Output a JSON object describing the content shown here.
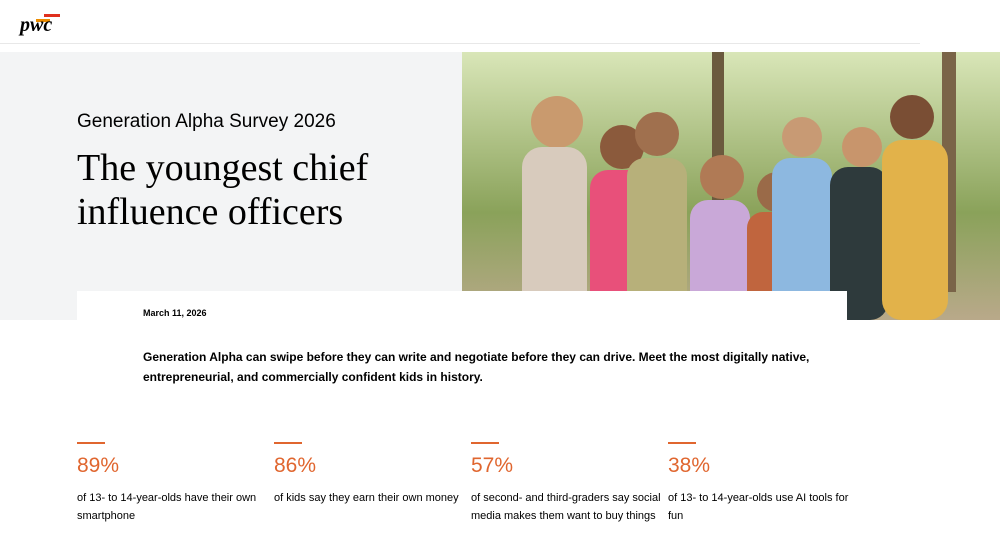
{
  "header": {
    "logo": "pwc"
  },
  "hero": {
    "eyebrow": "Generation Alpha Survey 2026",
    "title_lines": [
      "The youngest chief",
      "influence officers"
    ]
  },
  "article": {
    "date": "March 11, 2026",
    "lead_lines": [
      "Generation Alpha can swipe before they can write and negotiate before they can drive. Meet the most digitally native,",
      "entrepreneurial, and commercially confident kids in history."
    ]
  },
  "stats": [
    {
      "figure": "89%",
      "text_lines": [
        "of 13- to 14-year-olds have their own",
        "smartphone"
      ]
    },
    {
      "figure": "86%",
      "text_lines": [
        "of kids say they earn their own money"
      ]
    },
    {
      "figure": "57%",
      "text_lines": [
        "of second- and third-graders say social",
        "media makes them want to buy things"
      ]
    },
    {
      "figure": "38%",
      "text_lines": [
        "of 13- to 14-year-olds use AI tools for",
        "fun"
      ]
    }
  ]
}
